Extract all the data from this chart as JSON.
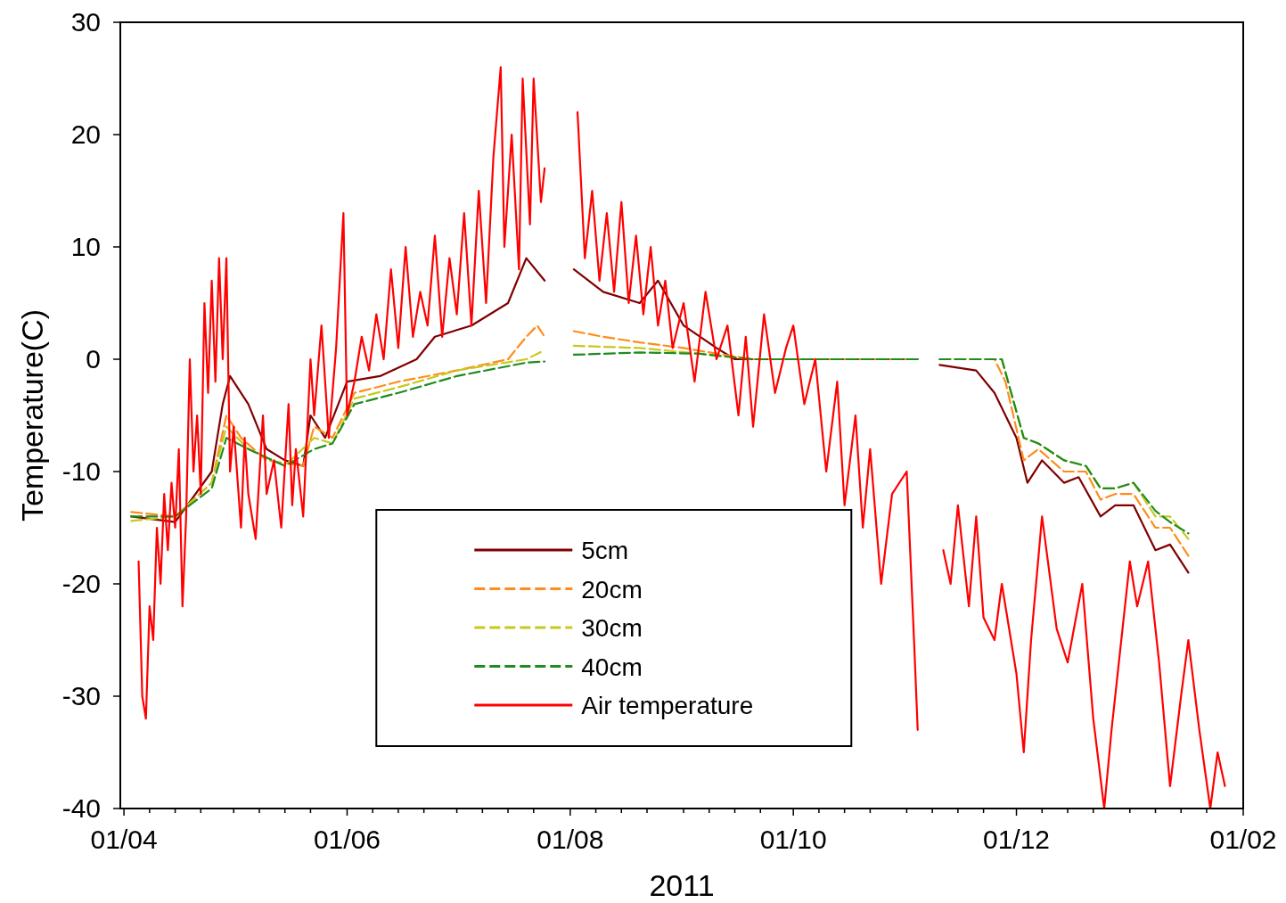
{
  "chart_data": {
    "type": "line",
    "xlabel": "2011",
    "ylabel": "Temperature(C)",
    "xlim": [
      "2011-03-31",
      "2012-02-01"
    ],
    "xticks": [
      {
        "value": "2011-04-01",
        "label": "01/04"
      },
      {
        "value": "2011-04-08",
        "label": null
      },
      {
        "value": "2011-04-15",
        "label": null
      },
      {
        "value": "2011-04-22",
        "label": null
      },
      {
        "value": "2011-05-01",
        "label": null
      },
      {
        "value": "2011-05-08",
        "label": null
      },
      {
        "value": "2011-05-15",
        "label": null
      },
      {
        "value": "2011-05-22",
        "label": null
      },
      {
        "value": "2011-06-01",
        "label": "01/06"
      },
      {
        "value": "2011-06-08",
        "label": null
      },
      {
        "value": "2011-06-15",
        "label": null
      },
      {
        "value": "2011-06-22",
        "label": null
      },
      {
        "value": "2011-07-01",
        "label": null
      },
      {
        "value": "2011-07-08",
        "label": null
      },
      {
        "value": "2011-07-15",
        "label": null
      },
      {
        "value": "2011-07-22",
        "label": null
      },
      {
        "value": "2011-08-01",
        "label": "01/08"
      },
      {
        "value": "2011-08-08",
        "label": null
      },
      {
        "value": "2011-08-15",
        "label": null
      },
      {
        "value": "2011-08-22",
        "label": null
      },
      {
        "value": "2011-09-01",
        "label": null
      },
      {
        "value": "2011-09-08",
        "label": null
      },
      {
        "value": "2011-09-15",
        "label": null
      },
      {
        "value": "2011-09-22",
        "label": null
      },
      {
        "value": "2011-10-01",
        "label": "01/10"
      },
      {
        "value": "2011-10-08",
        "label": null
      },
      {
        "value": "2011-10-15",
        "label": null
      },
      {
        "value": "2011-10-22",
        "label": null
      },
      {
        "value": "2011-11-01",
        "label": null
      },
      {
        "value": "2011-11-08",
        "label": null
      },
      {
        "value": "2011-11-15",
        "label": null
      },
      {
        "value": "2011-11-22",
        "label": null
      },
      {
        "value": "2011-12-01",
        "label": "01/12"
      },
      {
        "value": "2011-12-08",
        "label": null
      },
      {
        "value": "2011-12-15",
        "label": null
      },
      {
        "value": "2011-12-22",
        "label": null
      },
      {
        "value": "2012-01-01",
        "label": null
      },
      {
        "value": "2012-01-08",
        "label": null
      },
      {
        "value": "2012-01-15",
        "label": null
      },
      {
        "value": "2012-01-22",
        "label": null
      },
      {
        "value": "2012-02-01",
        "label": "01/02"
      }
    ],
    "ylim": [
      -40,
      30
    ],
    "yticks": [
      -40,
      -30,
      -20,
      -10,
      0,
      10,
      20,
      30
    ],
    "grid": false,
    "legend": "bottom",
    "series": [
      {
        "name": "5cm",
        "color": "#800000",
        "line_style": "solid",
        "x": [
          "2011-04-03",
          "2011-04-15",
          "2011-04-25",
          "2011-04-28",
          "2011-04-30",
          "2011-05-05",
          "2011-05-10",
          "2011-05-15",
          "2011-05-20",
          "2011-05-22",
          "2011-05-26",
          "2011-06-01",
          "2011-06-10",
          "2011-06-20",
          "2011-06-25",
          "2011-07-05",
          "2011-07-15",
          "2011-07-20",
          "2011-07-25",
          "2011-07-29",
          "2011-08-02",
          "2011-08-10",
          "2011-08-20",
          "2011-08-25",
          "2011-09-01",
          "2011-09-10",
          "2011-09-15",
          "2011-10-01",
          "2011-11-04",
          "2011-11-08",
          "2011-11-10",
          "2011-11-20",
          "2011-11-25",
          "2011-12-01",
          "2011-12-04",
          "2011-12-08",
          "2011-12-14",
          "2011-12-18",
          "2011-12-24",
          "2011-12-28",
          "2012-01-02",
          "2012-01-08",
          "2012-01-12",
          "2012-01-17"
        ],
        "values": [
          -14,
          -14.5,
          -10,
          -4,
          -1.5,
          -4,
          -8,
          -9,
          -9.5,
          -5,
          -7,
          -2,
          -1.5,
          0,
          2,
          3,
          5,
          9,
          7,
          null,
          8,
          6,
          5,
          7,
          3,
          1,
          0,
          0,
          0,
          null,
          -0.5,
          -1,
          -3,
          -7,
          -11,
          -9,
          -11,
          -10.5,
          -14,
          -13,
          -13,
          -17,
          -16.5,
          -19
        ]
      },
      {
        "name": "20cm",
        "color": "#ff8c1a",
        "line_style": "dashed",
        "x": [
          "2011-04-03",
          "2011-04-15",
          "2011-04-25",
          "2011-04-29",
          "2011-05-03",
          "2011-05-10",
          "2011-05-20",
          "2011-05-23",
          "2011-05-28",
          "2011-06-03",
          "2011-06-15",
          "2011-07-01",
          "2011-07-15",
          "2011-07-20",
          "2011-07-23",
          "2011-07-25",
          "2011-07-29",
          "2011-08-02",
          "2011-08-10",
          "2011-08-20",
          "2011-09-01",
          "2011-09-10",
          "2011-09-20",
          "2011-11-04",
          "2011-11-08",
          "2011-11-10",
          "2011-11-25",
          "2011-11-28",
          "2011-12-03",
          "2011-12-07",
          "2011-12-14",
          "2011-12-20",
          "2011-12-24",
          "2011-12-28",
          "2012-01-02",
          "2012-01-08",
          "2012-01-12",
          "2012-01-17"
        ],
        "values": [
          -13.6,
          -14,
          -11,
          -5,
          -7,
          -9,
          -9.5,
          -6,
          -7,
          -3,
          -2,
          -1,
          0,
          2,
          3,
          2,
          null,
          2.5,
          2,
          1.5,
          1,
          0.5,
          0,
          0,
          null,
          0,
          0,
          -2,
          -9,
          -8,
          -10,
          -10,
          -12.5,
          -12,
          -12,
          -15,
          -15,
          -17.5
        ]
      },
      {
        "name": "30cm",
        "color": "#c8c81e",
        "line_style": "dashed",
        "x": [
          "2011-04-03",
          "2011-04-15",
          "2011-04-25",
          "2011-04-29",
          "2011-05-05",
          "2011-05-15",
          "2011-05-23",
          "2011-05-28",
          "2011-06-03",
          "2011-06-15",
          "2011-07-01",
          "2011-07-20",
          "2011-07-25",
          "2011-07-29",
          "2011-08-02",
          "2011-08-20",
          "2011-09-05",
          "2011-09-20",
          "2011-11-04",
          "2011-11-08",
          "2011-11-10",
          "2011-11-27",
          "2011-12-03",
          "2011-12-07",
          "2011-12-14",
          "2011-12-20",
          "2011-12-24",
          "2011-12-28",
          "2012-01-02",
          "2012-01-08",
          "2012-01-12",
          "2012-01-17"
        ],
        "values": [
          -14.4,
          -14,
          -11,
          -6,
          -8,
          -9.5,
          -7,
          -7.5,
          -3.5,
          -2.5,
          -1,
          0,
          0.8,
          null,
          1.2,
          1,
          0.5,
          0,
          0,
          null,
          0,
          0,
          -7,
          -7.5,
          -9,
          -9.5,
          -11.5,
          -11.5,
          -11,
          -14,
          -14,
          -16
        ]
      },
      {
        "name": "40cm",
        "color": "#1e8c1e",
        "line_style": "dashed",
        "x": [
          "2011-04-03",
          "2011-04-15",
          "2011-04-25",
          "2011-04-29",
          "2011-05-05",
          "2011-05-15",
          "2011-05-23",
          "2011-05-28",
          "2011-06-03",
          "2011-06-15",
          "2011-07-01",
          "2011-07-20",
          "2011-07-25",
          "2011-07-29",
          "2011-08-02",
          "2011-08-20",
          "2011-09-05",
          "2011-09-20",
          "2011-11-04",
          "2011-11-08",
          "2011-11-10",
          "2011-11-27",
          "2011-12-03",
          "2011-12-07",
          "2011-12-14",
          "2011-12-20",
          "2011-12-24",
          "2011-12-28",
          "2012-01-02",
          "2012-01-08",
          "2012-01-12",
          "2012-01-17"
        ],
        "values": [
          -14,
          -14,
          -11.5,
          -7,
          -8,
          -9.5,
          -8,
          -7.5,
          -4,
          -3,
          -1.5,
          -0.3,
          -0.2,
          null,
          0.4,
          0.6,
          0.5,
          0,
          0,
          null,
          0,
          0,
          -7,
          -7.5,
          -9,
          -9.5,
          -11.5,
          -11.5,
          -11,
          -13.5,
          -14.5,
          -15.5
        ]
      },
      {
        "name": "Air temperature",
        "color": "#ff0000",
        "line_style": "solid",
        "x": [
          "2011-04-05",
          "2011-04-06",
          "2011-04-07",
          "2011-04-08",
          "2011-04-09",
          "2011-04-10",
          "2011-04-11",
          "2011-04-12",
          "2011-04-13",
          "2011-04-14",
          "2011-04-15",
          "2011-04-16",
          "2011-04-17",
          "2011-04-18",
          "2011-04-19",
          "2011-04-20",
          "2011-04-21",
          "2011-04-22",
          "2011-04-23",
          "2011-04-24",
          "2011-04-25",
          "2011-04-26",
          "2011-04-27",
          "2011-04-28",
          "2011-04-29",
          "2011-04-30",
          "2011-05-01",
          "2011-05-03",
          "2011-05-04",
          "2011-05-05",
          "2011-05-07",
          "2011-05-09",
          "2011-05-10",
          "2011-05-12",
          "2011-05-14",
          "2011-05-16",
          "2011-05-17",
          "2011-05-18",
          "2011-05-20",
          "2011-05-22",
          "2011-05-23",
          "2011-05-25",
          "2011-05-27",
          "2011-05-29",
          "2011-05-31",
          "2011-06-01",
          "2011-06-03",
          "2011-06-05",
          "2011-06-07",
          "2011-06-09",
          "2011-06-11",
          "2011-06-13",
          "2011-06-15",
          "2011-06-17",
          "2011-06-19",
          "2011-06-21",
          "2011-06-23",
          "2011-06-25",
          "2011-06-27",
          "2011-06-29",
          "2011-07-01",
          "2011-07-03",
          "2011-07-05",
          "2011-07-07",
          "2011-07-09",
          "2011-07-11",
          "2011-07-13",
          "2011-07-14",
          "2011-07-16",
          "2011-07-18",
          "2011-07-19",
          "2011-07-21",
          "2011-07-22",
          "2011-07-24",
          "2011-07-25",
          "2011-07-29",
          "2011-08-03",
          "2011-08-05",
          "2011-08-07",
          "2011-08-09",
          "2011-08-11",
          "2011-08-13",
          "2011-08-15",
          "2011-08-17",
          "2011-08-19",
          "2011-08-21",
          "2011-08-23",
          "2011-08-25",
          "2011-08-27",
          "2011-08-29",
          "2011-09-01",
          "2011-09-04",
          "2011-09-07",
          "2011-09-10",
          "2011-09-13",
          "2011-09-16",
          "2011-09-18",
          "2011-09-20",
          "2011-09-23",
          "2011-09-26",
          "2011-09-29",
          "2011-10-01",
          "2011-10-04",
          "2011-10-07",
          "2011-10-10",
          "2011-10-13",
          "2011-10-15",
          "2011-10-18",
          "2011-10-20",
          "2011-10-22",
          "2011-10-25",
          "2011-10-28",
          "2011-11-01",
          "2011-11-03",
          "2011-11-04",
          "2011-11-08",
          "2011-11-11",
          "2011-11-13",
          "2011-11-15",
          "2011-11-18",
          "2011-11-20",
          "2011-11-22",
          "2011-11-25",
          "2011-11-27",
          "2011-12-01",
          "2011-12-03",
          "2011-12-05",
          "2011-12-08",
          "2011-12-12",
          "2011-12-15",
          "2011-12-19",
          "2011-12-22",
          "2011-12-25",
          "2011-12-27",
          "2012-01-01",
          "2012-01-03",
          "2012-01-06",
          "2012-01-09",
          "2012-01-12",
          "2012-01-15",
          "2012-01-17",
          "2012-01-20",
          "2012-01-23",
          "2012-01-25",
          "2012-01-27"
        ],
        "values": [
          -18,
          -30,
          -32,
          -22,
          -25,
          -15,
          -20,
          -12,
          -17,
          -11,
          -15,
          -8,
          -22,
          -14,
          0,
          -10,
          -5,
          -12,
          5,
          -3,
          7,
          -2,
          9,
          0,
          9,
          -10,
          -6,
          -15,
          -7,
          -12,
          -16,
          -5,
          -12,
          -9,
          -15,
          -4,
          -13,
          -8,
          -14,
          0,
          -5,
          3,
          -7,
          1,
          13,
          -5,
          -2,
          2,
          -1,
          4,
          0,
          8,
          1,
          10,
          2,
          6,
          3,
          11,
          2,
          9,
          4,
          13,
          3,
          15,
          5,
          18,
          26,
          10,
          20,
          8,
          25,
          12,
          25,
          14,
          17,
          null,
          22,
          9,
          15,
          7,
          13,
          6,
          14,
          5,
          11,
          4,
          10,
          3,
          7,
          1,
          5,
          -2,
          6,
          0,
          3,
          -5,
          2,
          -6,
          4,
          -3,
          1,
          3,
          -4,
          0,
          -10,
          -2,
          -13,
          -5,
          -15,
          -8,
          -20,
          -12,
          -10,
          -25,
          -33,
          null,
          -17,
          -20,
          -13,
          -22,
          -14,
          -23,
          -25,
          -20,
          -28,
          -35,
          -25,
          -14,
          -24,
          -27,
          -20,
          -32,
          -40,
          -33,
          -18,
          -22,
          -18,
          -27,
          -38,
          -30,
          -25,
          -33,
          -40,
          -35,
          -38
        ]
      }
    ]
  }
}
